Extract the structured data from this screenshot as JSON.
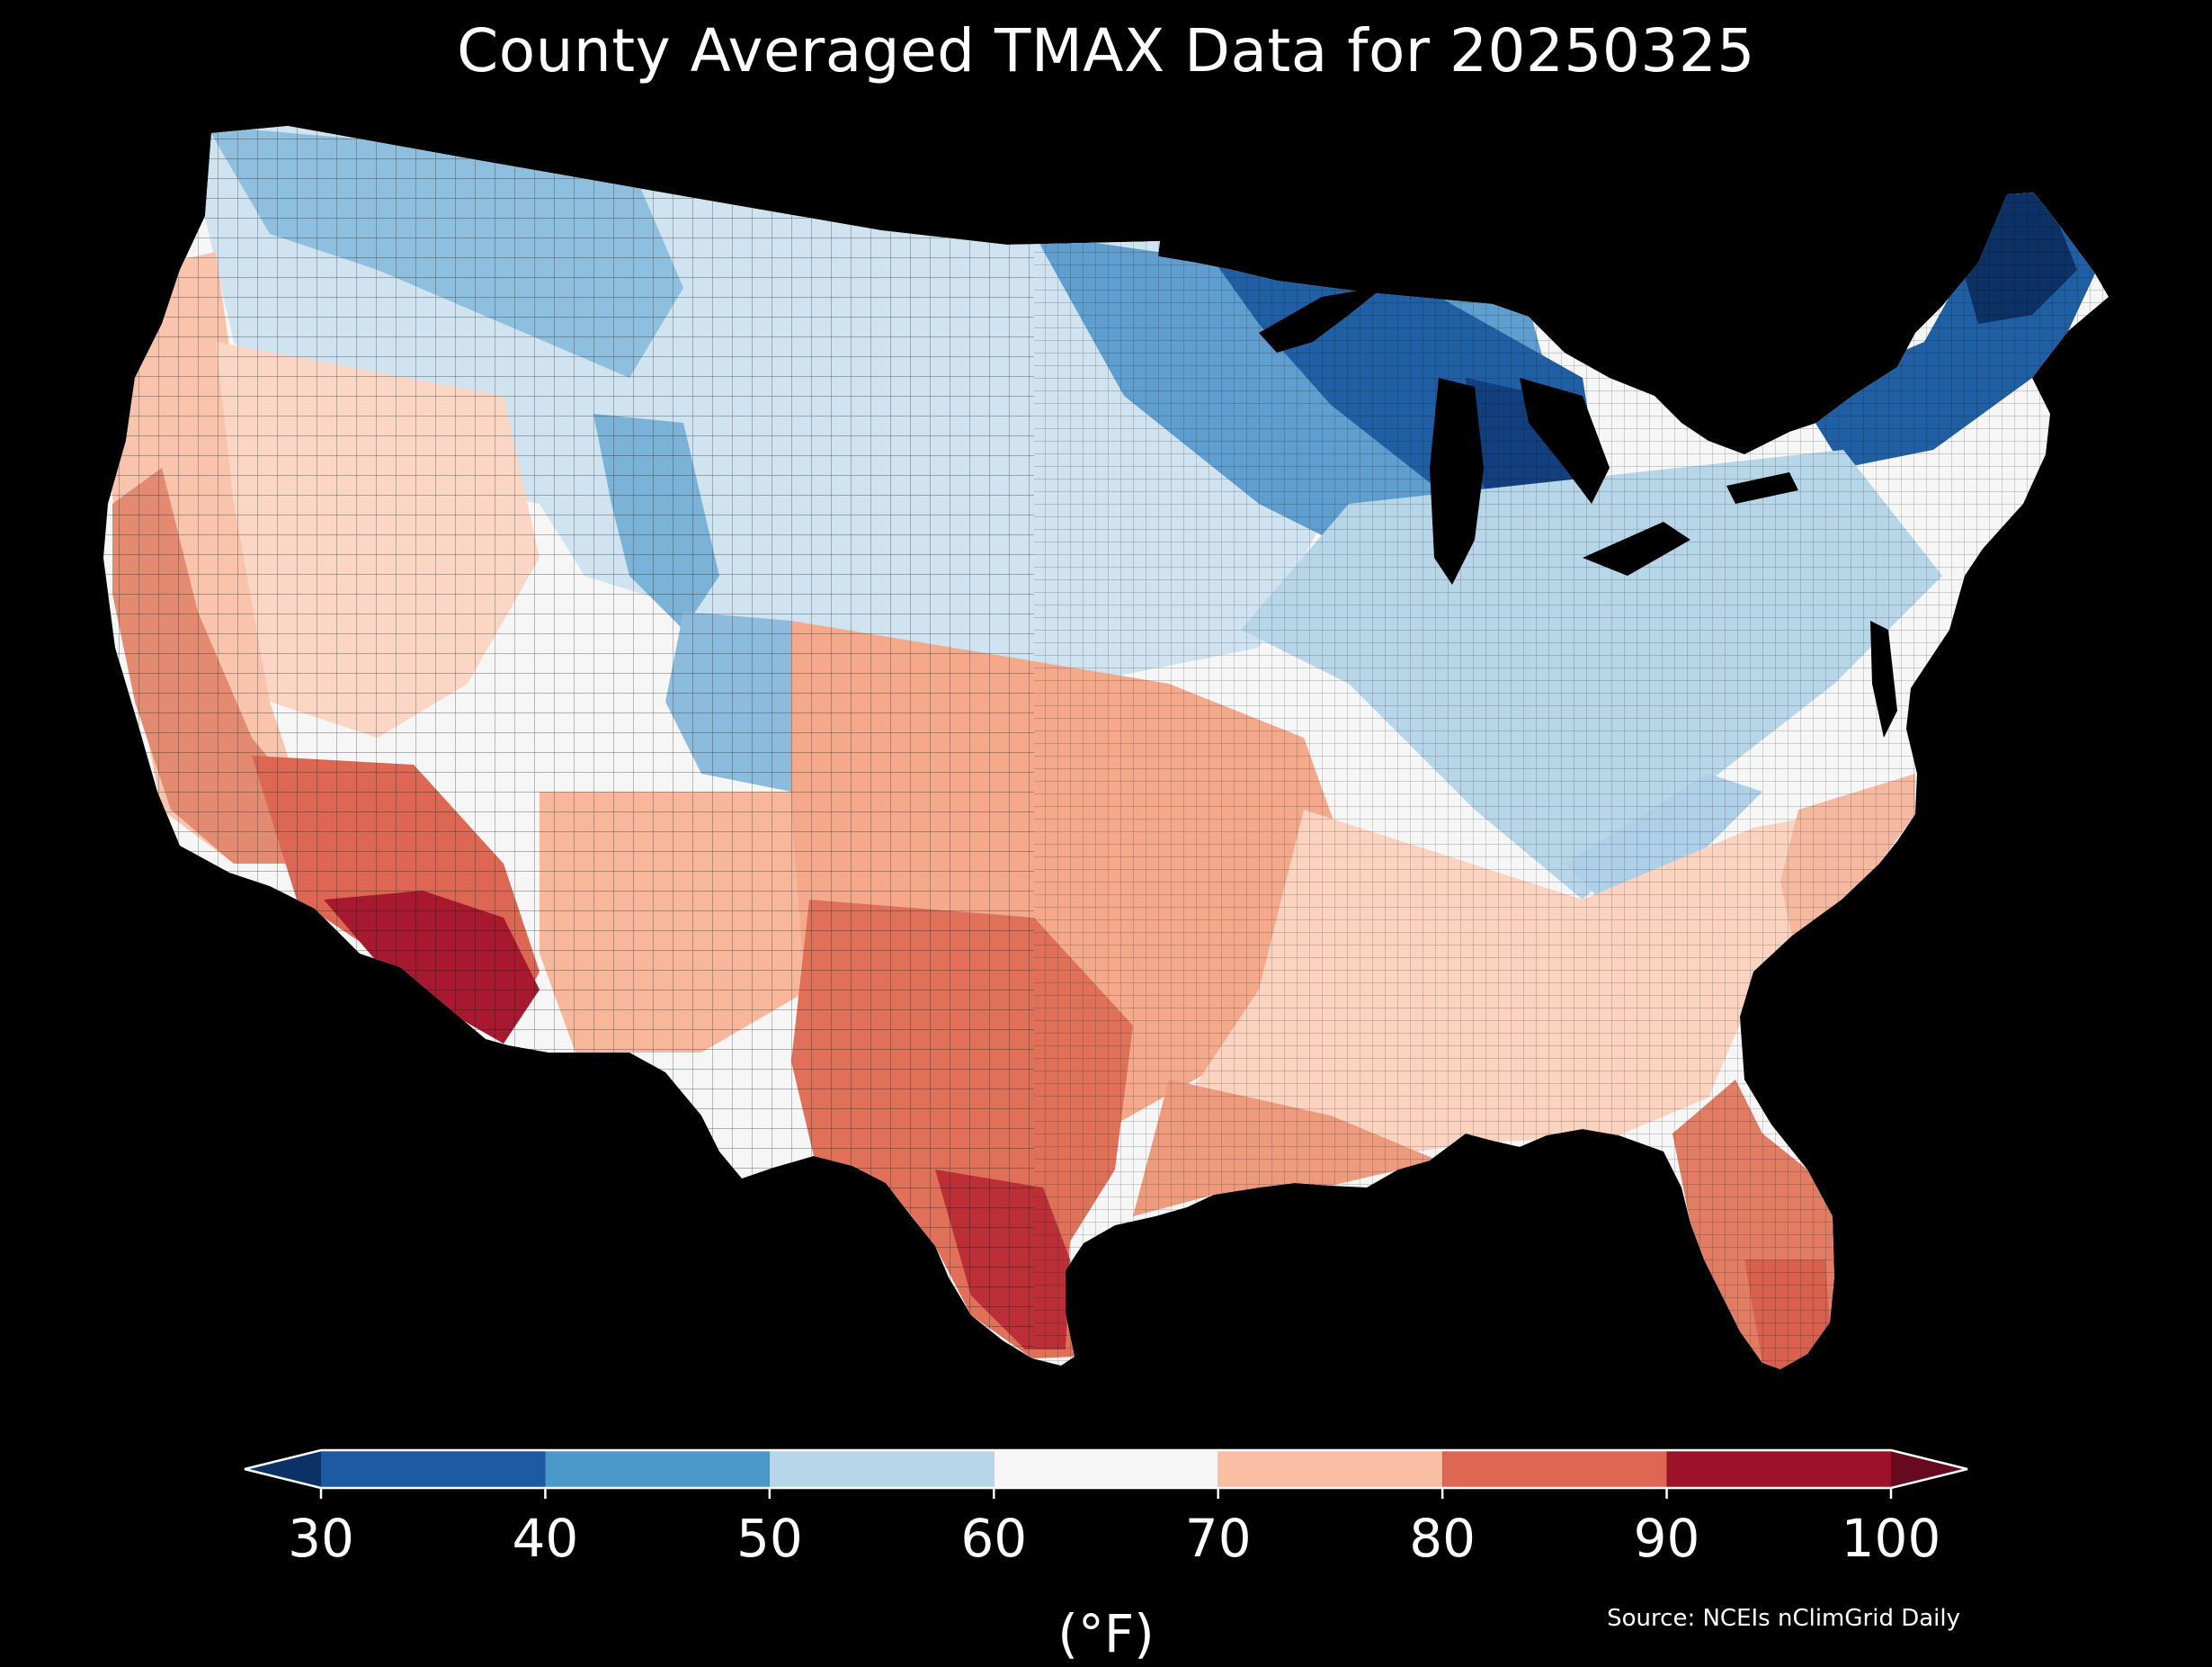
{
  "title": "County Averaged TMAX Data for 20250325",
  "colorbar": {
    "ticks": [
      "30",
      "40",
      "50",
      "60",
      "70",
      "80",
      "90",
      "100"
    ],
    "bins": [
      {
        "from": 30,
        "to": 40,
        "color": "#1d5aa1"
      },
      {
        "from": 40,
        "to": 50,
        "color": "#4b98cb"
      },
      {
        "from": 50,
        "to": 60,
        "color": "#b7d6ea"
      },
      {
        "from": 60,
        "to": 70,
        "color": "#f6f6f6"
      },
      {
        "from": 70,
        "to": 80,
        "color": "#f9bea3"
      },
      {
        "from": 80,
        "to": 90,
        "color": "#dd6752"
      },
      {
        "from": 90,
        "to": 100,
        "color": "#9c1229"
      }
    ],
    "under_color": "#0b3166",
    "over_color": "#680a1f",
    "unit": "(°F)"
  },
  "source": "Source: NCEIs nClimGrid Daily",
  "colors": {
    "background": "#000000",
    "text": "#ffffff"
  }
}
